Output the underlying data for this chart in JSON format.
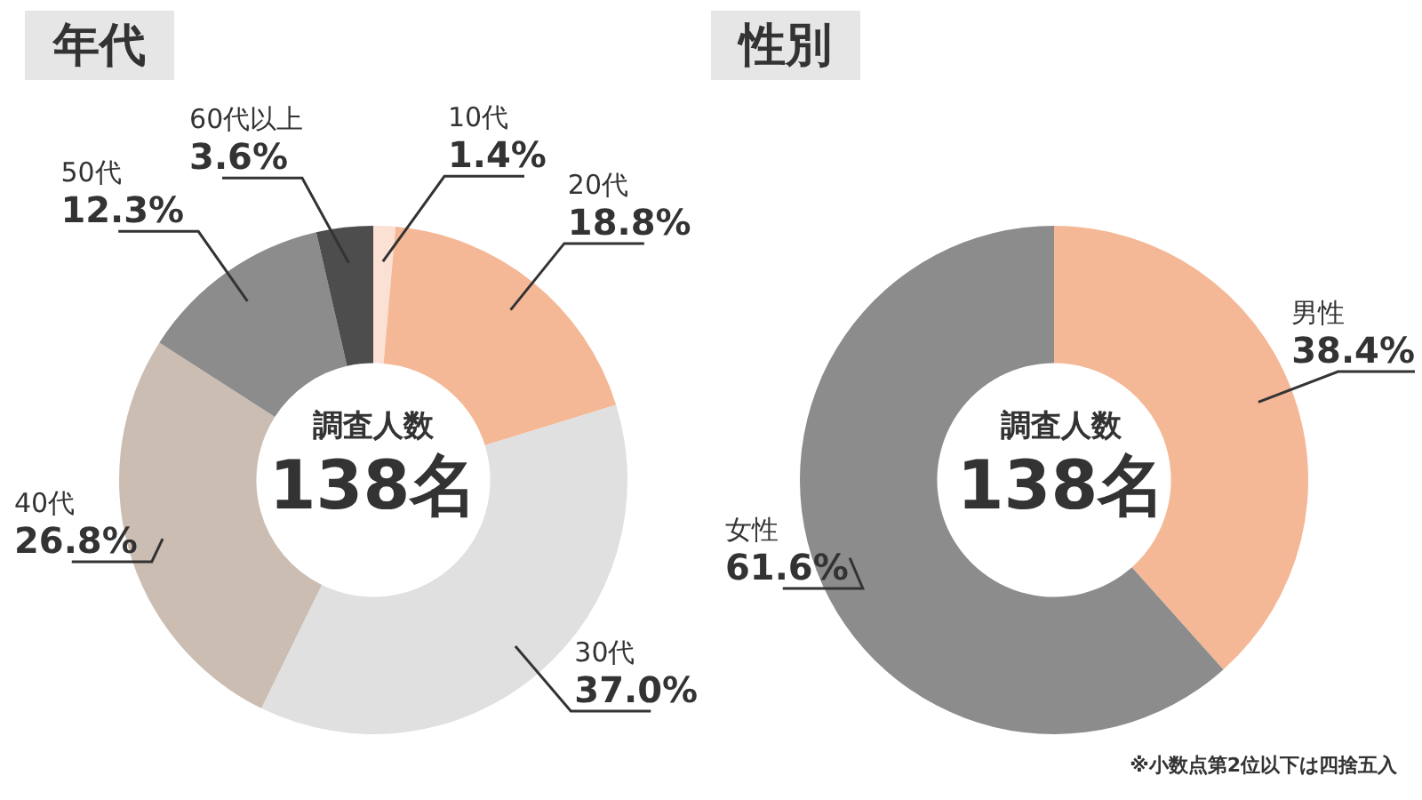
{
  "chart_data": [
    {
      "type": "donut",
      "title": "年代",
      "categories": [
        "10代",
        "20代",
        "30代",
        "40代",
        "50代",
        "60代以上"
      ],
      "values": [
        1.4,
        18.8,
        37.0,
        26.8,
        12.3,
        3.6
      ],
      "colors": [
        "#fbe0d4",
        "#f4b896",
        "#e0e0e0",
        "#cbbdb2",
        "#8c8c8c",
        "#4d4d4d"
      ],
      "value_labels": [
        "1.4%",
        "18.8%",
        "37.0%",
        "26.8%",
        "12.3%",
        "3.6%"
      ],
      "annotations": [
        "調査人数",
        "138名"
      ],
      "legend": false
    },
    {
      "type": "donut",
      "title": "性別",
      "categories": [
        "男性",
        "女性"
      ],
      "values": [
        38.4,
        61.6
      ],
      "colors": [
        "#f4b896",
        "#8c8c8c"
      ],
      "value_labels": [
        "38.4%",
        "61.6%"
      ],
      "annotations": [
        "調査人数",
        "138名",
        "※小数点第2位以下は四捨五入"
      ],
      "legend": false
    }
  ]
}
